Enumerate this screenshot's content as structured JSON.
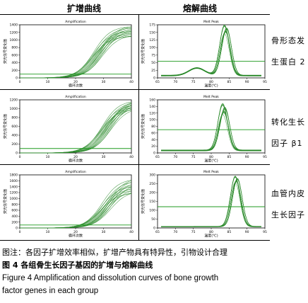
{
  "headers": {
    "amplification": "扩增曲线",
    "melt": "熔解曲线"
  },
  "rows": [
    {
      "label_line1": "骨形态发",
      "label_line2": "生蛋白 2"
    },
    {
      "label_line1": "转化生长",
      "label_line2": "因子 β1"
    },
    {
      "label_line1": "血管内皮",
      "label_line2": "生长因子"
    }
  ],
  "captions": {
    "note": "图注：各因子扩增效率相似，扩增产物具有特异性，引物设计合理",
    "title": "图 4   各组骨生长因子基因的扩增与熔解曲线",
    "english_line1": "Figure 4   Amplification and dissolution curves of bone growth",
    "english_line2": "factor genes in each group"
  },
  "colors": {
    "curve": "#2a8a2a",
    "threshold": "#1f9a1f",
    "frame": "#000000"
  },
  "chart_data": [
    {
      "type": "line",
      "title": "Amplification",
      "xlabel": "循环次数",
      "ylabel": "荧光信号变化值",
      "xlim": [
        0,
        40
      ],
      "ylim": [
        0,
        1400
      ],
      "xticks": [
        0,
        10,
        20,
        30,
        40
      ],
      "yticks": [
        0,
        200,
        400,
        600,
        800,
        1000,
        1200,
        1400
      ],
      "threshold": 100,
      "curve_count": 16,
      "midpoint_range": [
        26,
        30
      ],
      "plateau_range": [
        1100,
        1380
      ]
    },
    {
      "type": "line",
      "title": "Melt Peak",
      "xlabel": "温度(℃)",
      "ylabel": "荧光信号变化值",
      "xlim": [
        65,
        95
      ],
      "ylim": [
        0,
        175
      ],
      "xticks": [
        65,
        70,
        75,
        80,
        85,
        90,
        95
      ],
      "yticks": [
        0,
        25,
        50,
        75,
        100,
        125,
        150,
        175
      ],
      "threshold": 55,
      "curve_count": 16,
      "peak_temp": 84,
      "peak_range": [
        140,
        170
      ],
      "shoulder_temp": 76,
      "shoulder_height": 25
    },
    {
      "type": "line",
      "title": "Amplification",
      "xlabel": "循环次数",
      "ylabel": "荧光信号变化值",
      "xlim": [
        0,
        40
      ],
      "ylim": [
        0,
        1200
      ],
      "xticks": [
        0,
        10,
        20,
        30,
        40
      ],
      "yticks": [
        0,
        200,
        400,
        600,
        800,
        1000,
        1200
      ],
      "threshold": 100,
      "curve_count": 16,
      "midpoint_range": [
        29,
        33
      ],
      "plateau_range": [
        1000,
        1200
      ]
    },
    {
      "type": "line",
      "title": "Melt Peak",
      "xlabel": "温度(℃)",
      "ylabel": "荧光信号变化值",
      "xlim": [
        65,
        95
      ],
      "ylim": [
        0,
        160
      ],
      "xticks": [
        65,
        70,
        75,
        80,
        85,
        90,
        95
      ],
      "yticks": [
        0,
        20,
        40,
        60,
        80,
        100,
        120,
        140,
        160
      ],
      "threshold": 70,
      "curve_count": 16,
      "peak_temp": 83.5,
      "peak_range": [
        110,
        145
      ],
      "shoulder_temp": 0,
      "shoulder_height": 0
    },
    {
      "type": "line",
      "title": "Amplification",
      "xlabel": "循环次数",
      "ylabel": "荧光信号变化值",
      "xlim": [
        0,
        40
      ],
      "ylim": [
        0,
        1800
      ],
      "xticks": [
        0,
        10,
        20,
        30,
        40
      ],
      "yticks": [
        0,
        200,
        400,
        600,
        800,
        1000,
        1200,
        1400,
        1600,
        1800
      ],
      "threshold": 100,
      "curve_count": 16,
      "midpoint_range": [
        29,
        33
      ],
      "plateau_range": [
        1200,
        1700
      ]
    },
    {
      "type": "line",
      "title": "Melt Peak",
      "xlabel": "温度(℃)",
      "ylabel": "荧光信号变化值",
      "xlim": [
        65,
        95
      ],
      "ylim": [
        0,
        300
      ],
      "xticks": [
        65,
        70,
        75,
        80,
        85,
        90,
        95
      ],
      "yticks": [
        0,
        50,
        100,
        150,
        200,
        250,
        300
      ],
      "threshold": 120,
      "curve_count": 16,
      "peak_temp": 87,
      "peak_range": [
        250,
        290
      ],
      "shoulder_temp": 0,
      "shoulder_height": 0
    }
  ]
}
